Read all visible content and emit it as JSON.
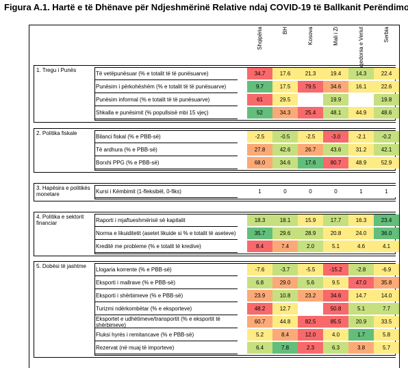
{
  "title": "Figura A.1. Hartë e të Dhënave për Ndjeshmërinë Relative ndaj COVID-19 të Ballkanit Perëndimo",
  "countries": [
    "Shqipëria",
    "BH",
    "Kosova",
    "Mali i Zi",
    "Maqedonia e Veriut",
    "Serbia"
  ],
  "colors": {
    "red": "#f8696b",
    "orange": "#fbaa77",
    "yellow": "#ffeb84",
    "lightgreen": "#c6e07f",
    "green": "#63be7b",
    "white": "#ffffff"
  },
  "sections": [
    {
      "label": "1. Tregu i Punës",
      "rows": [
        {
          "label": "Të vetëpunësuar (% e totalit të të punësuarve)",
          "values": [
            "34.7",
            "17.6",
            "21.3",
            "19.4",
            "14.3",
            "22.4"
          ],
          "colors": [
            "red",
            "yellow",
            "yellow",
            "yellow",
            "lightgreen",
            "yellow"
          ]
        },
        {
          "label": "Punësim i përkohëshëm (% e totalit të të punësuarve)",
          "values": [
            "9.7",
            "17.5",
            "79.5",
            "34.6",
            "16.1",
            "22.6"
          ],
          "colors": [
            "green",
            "yellow",
            "red",
            "orange",
            "yellow",
            "yellow"
          ]
        },
        {
          "label": "Punësim informal (% e totalit të të punësuarve)",
          "values": [
            "61",
            "29.5",
            "",
            "19.9",
            "",
            "19.8"
          ],
          "colors": [
            "red",
            "yellow",
            "white",
            "lightgreen",
            "white",
            "lightgreen"
          ]
        },
        {
          "label": "Shkalla e punësimit (% popullsisë mbi 15 vjeç)",
          "values": [
            "52",
            "34.3",
            "25.4",
            "48.1",
            "44.9",
            "48.6"
          ],
          "colors": [
            "green",
            "orange",
            "red",
            "lightgreen",
            "yellow",
            "lightgreen"
          ]
        }
      ]
    },
    {
      "label": "2. Politika fiskale",
      "rows": [
        {
          "label": "Bilanci fiskal (% e PBB-së)",
          "values": [
            "-2.5",
            "-0.5",
            "-2.5",
            "-3.0",
            "-2.1",
            "-0.2"
          ],
          "colors": [
            "yellow",
            "lightgreen",
            "yellow",
            "red",
            "yellow",
            "lightgreen"
          ]
        },
        {
          "label": "Të ardhura (% e PBB-së)",
          "values": [
            "27.8",
            "42.6",
            "26.7",
            "43.6",
            "31.2",
            "42.1"
          ],
          "colors": [
            "orange",
            "lightgreen",
            "orange",
            "lightgreen",
            "yellow",
            "lightgreen"
          ]
        },
        {
          "label": "Borxhi PPG (% e PBB-së)",
          "values": [
            "68.0",
            "34.6",
            "17.6",
            "80.7",
            "48.9",
            "52.9"
          ],
          "colors": [
            "orange",
            "lightgreen",
            "green",
            "red",
            "yellow",
            "yellow"
          ]
        }
      ]
    },
    {
      "label": "3. Hapësira e politikës monetare",
      "rows": [
        {
          "label": "Kursi i Këmbimit (1-fleksibël, 0-fiks)",
          "values": [
            "1",
            "0",
            "0",
            "0",
            "1",
            "1"
          ],
          "colors": [
            "white",
            "white",
            "white",
            "white",
            "white",
            "white"
          ]
        }
      ]
    },
    {
      "label": "4. Politika e sektorit financiar",
      "rows": [
        {
          "label": "Raporti i mjaftueshmërisë së kapitalit",
          "values": [
            "18.3",
            "18.1",
            "15.9",
            "17.7",
            "16.3",
            "23.4"
          ],
          "colors": [
            "lightgreen",
            "lightgreen",
            "yellow",
            "lightgreen",
            "yellow",
            "green"
          ]
        },
        {
          "label": "Norma e likuiditetit (asetet likuide si % e totalit të aseteve)",
          "values": [
            "35.7",
            "29.6",
            "28.9",
            "20.8",
            "24.0",
            "36.0"
          ],
          "colors": [
            "green",
            "lightgreen",
            "lightgreen",
            "yellow",
            "yellow",
            "green"
          ]
        },
        {
          "label": "Kreditë me probleme (% e totalit të kredive)",
          "values": [
            "8.4",
            "7.4",
            "2.0",
            "5.1",
            "4.6",
            "4.1"
          ],
          "colors": [
            "red",
            "orange",
            "lightgreen",
            "yellow",
            "yellow",
            "yellow"
          ]
        }
      ]
    },
    {
      "label": "5. Dobësi të jashtme",
      "rows": [
        {
          "label": "Llogaria korrente (% e PBB-së)",
          "values": [
            "-7.6",
            "-3.7",
            "-5.5",
            "-15.2",
            "-2.8",
            "-6.9"
          ],
          "colors": [
            "yellow",
            "lightgreen",
            "yellow",
            "red",
            "lightgreen",
            "yellow"
          ]
        },
        {
          "label": "Eksporti i mallrave (% e PBB-së)",
          "values": [
            "6.8",
            "29.0",
            "5.6",
            "9.5",
            "47.0",
            "35.8"
          ],
          "colors": [
            "lightgreen",
            "orange",
            "lightgreen",
            "yellow",
            "red",
            "orange"
          ]
        },
        {
          "label": "Eksporti i shërbimeve (% e PBB-së)",
          "values": [
            "23.9",
            "10.8",
            "23.2",
            "34.6",
            "14.7",
            "14.0"
          ],
          "colors": [
            "orange",
            "lightgreen",
            "orange",
            "red",
            "yellow",
            "yellow"
          ]
        },
        {
          "label": "Turizmi ndërkombëtar (% e eksporteve)",
          "values": [
            "48.2",
            "12.7",
            "",
            "50.8",
            "5.1",
            "7.7"
          ],
          "colors": [
            "red",
            "yellow",
            "white",
            "red",
            "lightgreen",
            "lightgreen"
          ]
        },
        {
          "label": "Eksportet e udhëtimeve/transportit (% e eksportit të shërbimeve)",
          "values": [
            "60.7",
            "44.8",
            "82.5",
            "85.5",
            "20.9",
            "33.5"
          ],
          "colors": [
            "orange",
            "yellow",
            "red",
            "red",
            "lightgreen",
            "yellow"
          ]
        },
        {
          "label": "Fluksi hyrës i remitancave (% e PBB-së)",
          "values": [
            "5.2",
            "8.4",
            "12.0",
            "4.0",
            "1.7",
            "5.8"
          ],
          "colors": [
            "yellow",
            "orange",
            "red",
            "yellow",
            "green",
            "yellow"
          ]
        },
        {
          "label": "Rezervat (në muaj të importeve)",
          "values": [
            "6.4",
            "7.8",
            "2.3",
            "6.3",
            "3.8",
            "5.7"
          ],
          "colors": [
            "lightgreen",
            "green",
            "red",
            "lightgreen",
            "orange",
            "yellow"
          ]
        }
      ]
    }
  ]
}
